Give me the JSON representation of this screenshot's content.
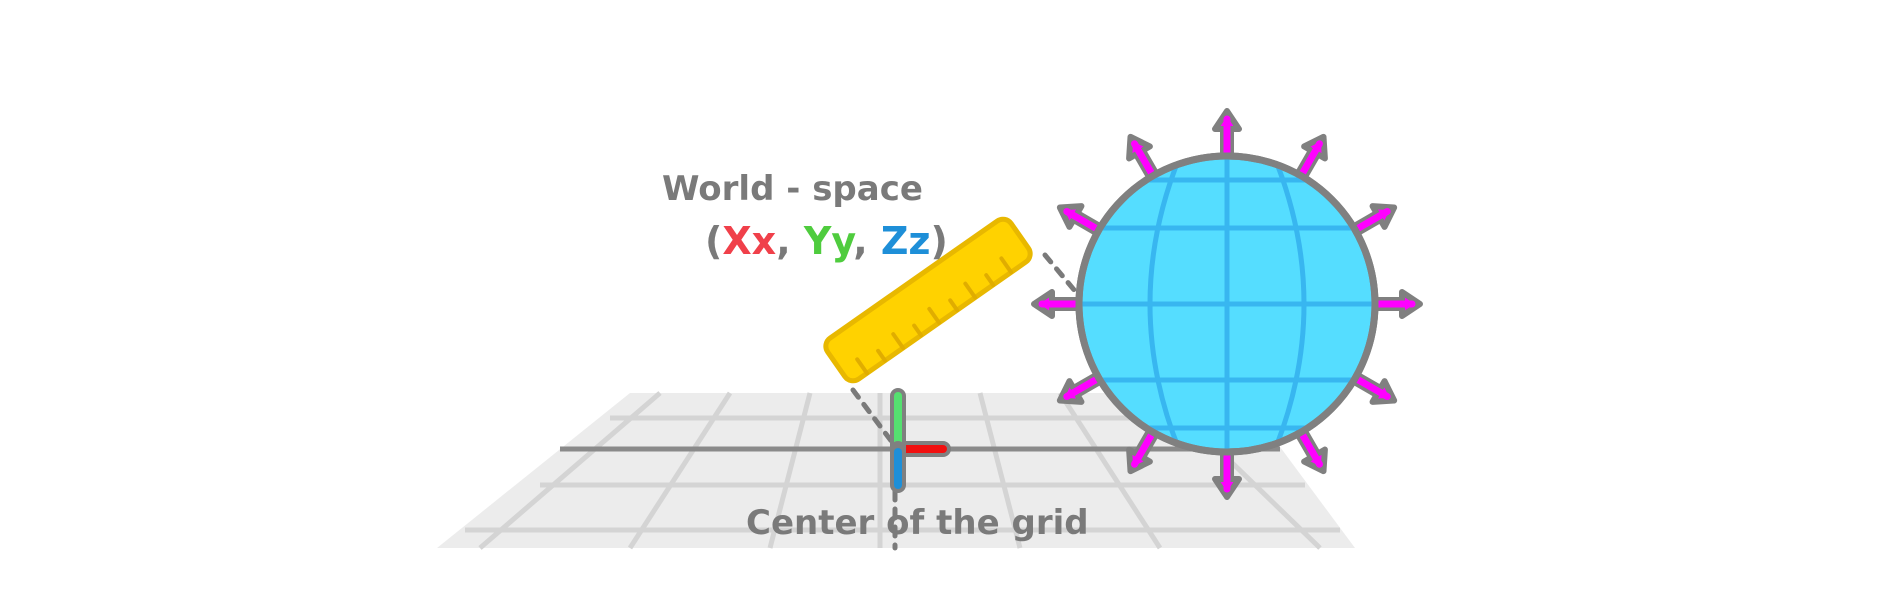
{
  "labels": {
    "world_space": "World - space",
    "coords": {
      "open": "(",
      "x": "Xx",
      "sep1": ", ",
      "y": "Yy",
      "sep2": ", ",
      "z": "Zz",
      "close": ")"
    },
    "center_of_grid": "Center of the grid"
  },
  "colors": {
    "text_gray": "#7a7a7a",
    "x_axis": "#f0404a",
    "y_axis": "#4fcc3e",
    "z_axis": "#1e8fd8",
    "ruler": "#ffd200",
    "globe": "#55ddff",
    "arrows": "#ff00ff",
    "outline": "#808080",
    "grid_floor": "#ececec",
    "grid_lines": "#d4d4d4"
  },
  "icons": {
    "ruler": "ruler-icon",
    "globe": "globe-icon",
    "axes_gizmo": "xyz-axes-gizmo-icon",
    "grid": "ground-grid"
  }
}
